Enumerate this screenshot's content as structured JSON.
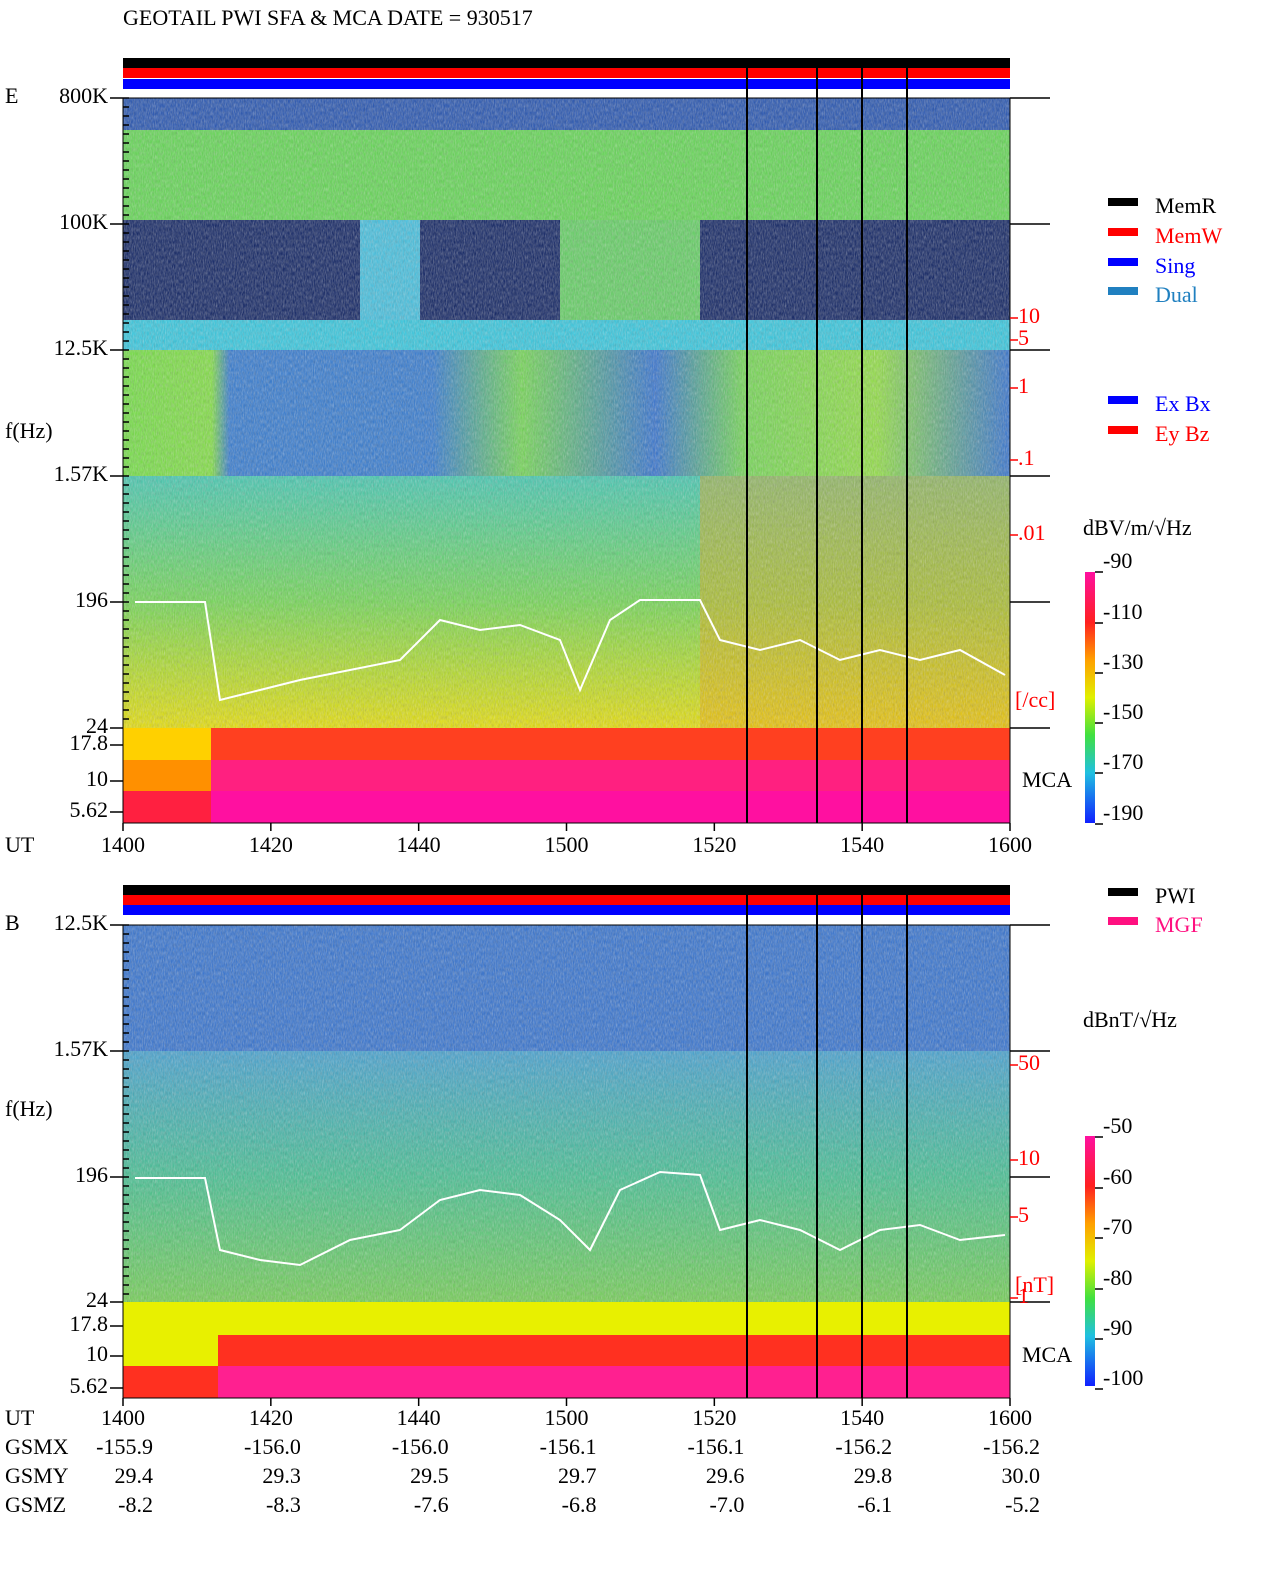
{
  "header": {
    "title": "GEOTAIL  PWI SFA & MCA   DATE = 930517"
  },
  "panels": [
    {
      "label": "E",
      "yticks": [
        "800K",
        "100K",
        "12.5K",
        "1.57K",
        "196",
        "24",
        "17.8",
        "10",
        "5.62"
      ],
      "ylabel": "f(Hz)",
      "density_ticks": [
        "10",
        "5",
        "1",
        ".1",
        ".01"
      ],
      "density_unit": "[/cc]",
      "mca": "MCA",
      "unit": "dBV/m/√Hz",
      "colorbar_ticks": [
        "-90",
        "-110",
        "-130",
        "-150",
        "-170",
        "-190"
      ],
      "legend": [
        {
          "name": "MemR",
          "color": "#000000"
        },
        {
          "name": "MemW",
          "color": "#ff0000"
        },
        {
          "name": "Sing",
          "color": "#0000ff"
        },
        {
          "name": "Dual",
          "color": "#2080c0"
        },
        {
          "name": "Ex Bx",
          "color": "#0000ff"
        },
        {
          "name": "Ey Bz",
          "color": "#ff0000"
        }
      ]
    },
    {
      "label": "B",
      "yticks": [
        "12.5K",
        "1.57K",
        "196",
        "24",
        "17.8",
        "10",
        "5.62"
      ],
      "ylabel": "f(Hz)",
      "density_ticks": [
        "50",
        "10",
        "5",
        "1"
      ],
      "density_unit": "[nT]",
      "mca": "MCA",
      "unit": "dBnT/√Hz",
      "colorbar_ticks": [
        "-50",
        "-60",
        "-70",
        "-80",
        "-90",
        "-100"
      ],
      "legend": [
        {
          "name": "PWI",
          "color": "#000000"
        },
        {
          "name": "MGF",
          "color": "#ff1080"
        }
      ]
    }
  ],
  "time_axis": {
    "label": "UT",
    "ticks": [
      "1400",
      "1420",
      "1440",
      "1500",
      "1520",
      "1540",
      "1600"
    ]
  },
  "orbit": [
    {
      "label": "GSMX",
      "values": [
        "-155.9",
        "-156.0",
        "-156.0",
        "-156.1",
        "-156.1",
        "-156.2",
        "-156.2"
      ]
    },
    {
      "label": "GSMY",
      "values": [
        "29.4",
        "29.3",
        "29.5",
        "29.7",
        "29.6",
        "29.8",
        "30.0"
      ]
    },
    {
      "label": "GSMZ",
      "values": [
        "-8.2",
        "-8.3",
        "-7.6",
        "-6.8",
        "-7.0",
        "-6.1",
        "-5.2"
      ]
    }
  ]
}
